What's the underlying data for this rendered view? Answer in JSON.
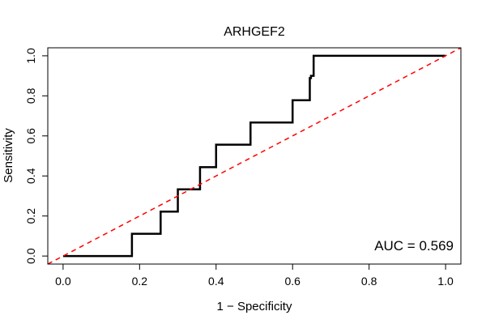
{
  "chart_data": {
    "type": "line",
    "title": "ARHGEF2",
    "xlabel": "1 − Specificity",
    "ylabel": "Sensitivity",
    "xlim": [
      -0.04,
      1.04
    ],
    "ylim": [
      -0.04,
      1.04
    ],
    "x_ticks": [
      0.0,
      0.2,
      0.4,
      0.6,
      0.8,
      1.0
    ],
    "x_tick_labels": [
      "0.0",
      "0.2",
      "0.4",
      "0.6",
      "0.8",
      "1.0"
    ],
    "y_ticks": [
      0.0,
      0.2,
      0.4,
      0.6,
      0.8,
      1.0
    ],
    "y_tick_labels": [
      "0.0",
      "0.2",
      "0.4",
      "0.6",
      "0.8",
      "1.0"
    ],
    "grid": false,
    "annotation": "AUC = 0.569",
    "series": [
      {
        "kind": "roc-curve",
        "color": "#000000",
        "style": "solid",
        "x": [
          0.0,
          0.18,
          0.18,
          0.255,
          0.255,
          0.3,
          0.3,
          0.358,
          0.358,
          0.4,
          0.4,
          0.49,
          0.49,
          0.6,
          0.6,
          0.645,
          0.645,
          0.648,
          0.648,
          0.655,
          0.655,
          1.0
        ],
        "y": [
          0.0,
          0.0,
          0.111,
          0.111,
          0.222,
          0.222,
          0.333,
          0.333,
          0.444,
          0.444,
          0.556,
          0.556,
          0.667,
          0.667,
          0.778,
          0.778,
          0.889,
          0.889,
          0.9,
          0.9,
          1.0,
          1.0
        ]
      },
      {
        "kind": "chance-diagonal",
        "color": "#ff0000",
        "style": "dashed",
        "x": [
          -0.04,
          1.04
        ],
        "y": [
          -0.04,
          1.04
        ]
      }
    ]
  }
}
